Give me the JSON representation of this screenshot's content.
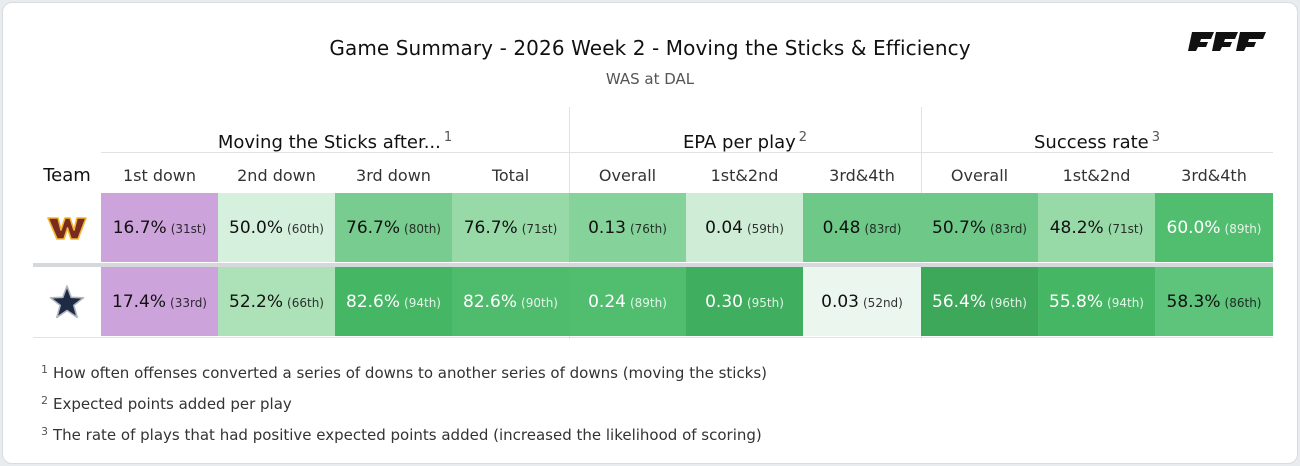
{
  "header": {
    "title": "Game Summary - 2026 Week 2 - Moving the Sticks & Efficiency",
    "subtitle": "WAS at DAL",
    "logo_text": "PFF"
  },
  "groups": [
    {
      "label": "Moving the Sticks after...",
      "note": "1"
    },
    {
      "label": "EPA per play",
      "note": "2"
    },
    {
      "label": "Success rate",
      "note": "3"
    }
  ],
  "team_header": "Team",
  "columns": [
    "1st down",
    "2nd down",
    "3rd down",
    "Total",
    "Overall",
    "1st&2nd",
    "3rd&4th",
    "Overall",
    "1st&2nd",
    "3rd&4th"
  ],
  "rows": [
    {
      "team": "WAS",
      "team_icon": "commanders-w-logo",
      "cells": [
        {
          "value": "16.7",
          "unit": "%",
          "rank": "(31st)",
          "bg": "#cda3dc",
          "fg": "#111111"
        },
        {
          "value": "50.0%",
          "rank": "(60th)",
          "bg": "#d6f0de",
          "fg": "#111111"
        },
        {
          "value": "76.7%",
          "rank": "(80th)",
          "bg": "#79cc8f",
          "fg": "#111111"
        },
        {
          "value": "76.7%",
          "rank": "(71st)",
          "bg": "#98d9a8",
          "fg": "#111111"
        },
        {
          "value": "0.13",
          "rank": "(76th)",
          "bg": "#86d29b",
          "fg": "#111111"
        },
        {
          "value": "0.04",
          "rank": "(59th)",
          "bg": "#cfecd7",
          "fg": "#111111"
        },
        {
          "value": "0.48",
          "rank": "(83rd)",
          "bg": "#6ec887",
          "fg": "#111111"
        },
        {
          "value": "50.7%",
          "rank": "(83rd)",
          "bg": "#6ec887",
          "fg": "#111111"
        },
        {
          "value": "48.2%",
          "rank": "(71st)",
          "bg": "#98d9a8",
          "fg": "#111111"
        },
        {
          "value": "60.0%",
          "rank": "(89th)",
          "bg": "#51bd6f",
          "fg": "#ffffff"
        }
      ]
    },
    {
      "team": "DAL",
      "team_icon": "cowboys-star-logo",
      "cells": [
        {
          "value": "17.4",
          "unit": "%",
          "rank": "(33rd)",
          "bg": "#cda3dc",
          "fg": "#111111"
        },
        {
          "value": "52.2%",
          "rank": "(66th)",
          "bg": "#ade2b9",
          "fg": "#111111"
        },
        {
          "value": "82.6%",
          "rank": "(94th)",
          "bg": "#44b664",
          "fg": "#ffffff"
        },
        {
          "value": "82.6%",
          "rank": "(90th)",
          "bg": "#4fbc6d",
          "fg": "#ffffff"
        },
        {
          "value": "0.24",
          "rank": "(89th)",
          "bg": "#51bd6f",
          "fg": "#ffffff"
        },
        {
          "value": "0.30",
          "rank": "(95th)",
          "bg": "#3fae5e",
          "fg": "#ffffff"
        },
        {
          "value": "0.03",
          "rank": "(52nd)",
          "bg": "#eaf6ee",
          "fg": "#111111"
        },
        {
          "value": "56.4%",
          "rank": "(96th)",
          "bg": "#3da75a",
          "fg": "#ffffff"
        },
        {
          "value": "55.8%",
          "rank": "(94th)",
          "bg": "#44b664",
          "fg": "#ffffff"
        },
        {
          "value": "58.3%",
          "rank": "(86th)",
          "bg": "#5ec47b",
          "fg": "#111111"
        }
      ]
    }
  ],
  "footnotes": [
    {
      "num": "1",
      "text": "How often offenses converted a series of downs to another series of downs (moving the sticks)"
    },
    {
      "num": "2",
      "text": "Expected points added per play"
    },
    {
      "num": "3",
      "text": "The rate of plays that had positive expected points added (increased the likelihood of scoring)"
    }
  ]
}
